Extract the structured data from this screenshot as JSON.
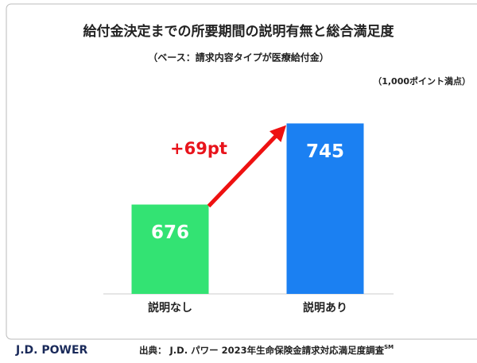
{
  "chart_data": {
    "type": "bar",
    "title": "給付金決定までの所要期間の説明有無と総合満足度",
    "subtitle": "（ベース：請求内容タイプが医療給付金）",
    "note": "（1,000ポイント満点）",
    "annotation": "+69pt",
    "categories": [
      "説明なし",
      "説明あり"
    ],
    "values": [
      676,
      745
    ],
    "colors": [
      "#33e373",
      "#1b80f2"
    ],
    "ylim": [
      600,
      800
    ]
  },
  "footer": {
    "logo": "J.D. POWER",
    "source": "出典： J.D. パワー 2023年生命保険金請求対応満足度調査",
    "source_mark": "SM"
  }
}
